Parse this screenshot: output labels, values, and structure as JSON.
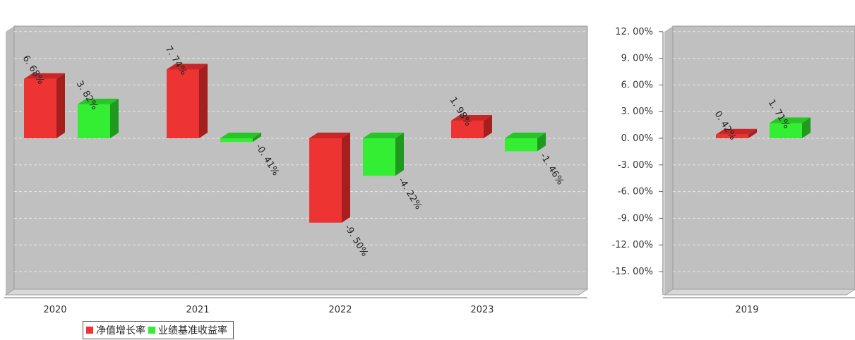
{
  "title": "",
  "legend": [
    {
      "name": "净值增长率",
      "color": "#ee3333"
    },
    {
      "name": "业绩基准收益率",
      "color": "#33ee33"
    }
  ],
  "chart_data": [
    {
      "type": "bar",
      "categories": [
        "2020",
        "2021",
        "2022",
        "2023"
      ],
      "series": [
        {
          "name": "净值增长率",
          "values": [
            6.68,
            7.74,
            -9.5,
            1.98
          ],
          "labels": [
            "6. 68%",
            "7. 74%",
            "-9. 50%",
            "1. 98%"
          ]
        },
        {
          "name": "业绩基准收益率",
          "values": [
            3.82,
            -0.41,
            -4.22,
            -1.46
          ],
          "labels": [
            "3. 82%",
            "-0. 41%",
            "-4. 22%",
            "-1. 46%"
          ]
        }
      ],
      "ylim": [
        -18,
        12.5
      ]
    },
    {
      "type": "bar",
      "categories": [
        "2019"
      ],
      "series": [
        {
          "name": "净值增长率",
          "values": [
            0.42
          ],
          "labels": [
            "0. 42%"
          ]
        },
        {
          "name": "业绩基准收益率",
          "values": [
            1.71
          ],
          "labels": [
            "1. 71%"
          ]
        }
      ],
      "ylim": [
        -18,
        12.5
      ],
      "yticks": [
        "12. 00%",
        "9. 00%",
        "6. 00%",
        "3. 00%",
        "0. 00%",
        "-3. 00%",
        "-6. 00%",
        "-9. 00%",
        "-12. 00%",
        "-15. 00%"
      ],
      "ytick_values": [
        12,
        9,
        6,
        3,
        0,
        -3,
        -6,
        -9,
        -12,
        -15
      ]
    }
  ]
}
